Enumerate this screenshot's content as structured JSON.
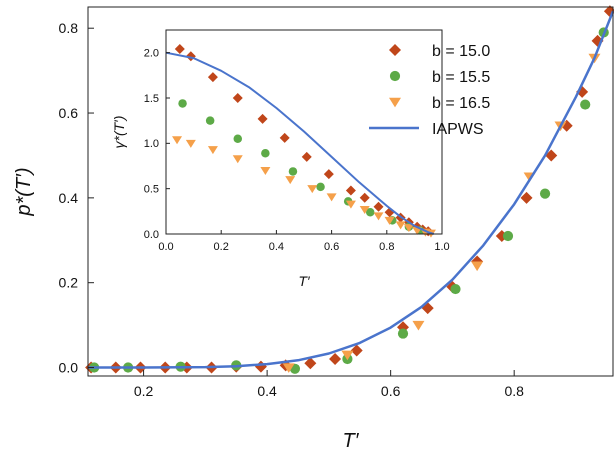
{
  "colors": {
    "b150": "#c0461a",
    "b155": "#5daa47",
    "b165": "#f5a04a",
    "iapws": "#4a74cc",
    "axis": "#222222"
  },
  "chart_data": [
    {
      "id": "main",
      "type": "scatter",
      "xlabel": "T′",
      "ylabel": "p*(T′)",
      "xlim": [
        0.11,
        0.96
      ],
      "ylim": [
        -0.02,
        0.85
      ],
      "xticks": [
        0.2,
        0.4,
        0.6,
        0.8
      ],
      "xtick_labels": [
        "0.2",
        "0.4",
        "0.6",
        "0.8"
      ],
      "yticks": [
        0.0,
        0.2,
        0.4,
        0.6,
        0.8
      ],
      "ytick_labels": [
        "0.0",
        "0.2",
        "0.4",
        "0.6",
        "0.8"
      ],
      "grid": false,
      "series": [
        {
          "name": "b = 15.0",
          "marker": "diamond",
          "color_key": "b150",
          "x": [
            0.115,
            0.155,
            0.195,
            0.235,
            0.27,
            0.31,
            0.35,
            0.39,
            0.43,
            0.47,
            0.51,
            0.545,
            0.62,
            0.66,
            0.7,
            0.74,
            0.78,
            0.82,
            0.86,
            0.885,
            0.91,
            0.935,
            0.955
          ],
          "y": [
            0.0,
            0.0,
            0.0,
            0.0,
            0.0,
            0.0,
            0.002,
            0.002,
            0.005,
            0.01,
            0.02,
            0.04,
            0.095,
            0.14,
            0.19,
            0.25,
            0.31,
            0.4,
            0.5,
            0.57,
            0.65,
            0.77,
            0.84
          ]
        },
        {
          "name": "b = 15.5",
          "marker": "circle",
          "color_key": "b155",
          "x": [
            0.12,
            0.175,
            0.26,
            0.35,
            0.445,
            0.53,
            0.62,
            0.705,
            0.79,
            0.85,
            0.915,
            0.945
          ],
          "y": [
            0.0,
            0.0,
            0.002,
            0.005,
            -0.003,
            0.02,
            0.08,
            0.185,
            0.31,
            0.41,
            0.62,
            0.79
          ]
        },
        {
          "name": "b = 16.5",
          "marker": "triangle-down",
          "color_key": "b165",
          "x": [
            0.435,
            0.53,
            0.645,
            0.74,
            0.825,
            0.875,
            0.93
          ],
          "y": [
            0.0,
            0.03,
            0.1,
            0.24,
            0.45,
            0.57,
            0.73
          ]
        },
        {
          "name": "IAPWS",
          "marker": "line",
          "color_key": "iapws",
          "x": [
            0.11,
            0.2,
            0.3,
            0.35,
            0.4,
            0.45,
            0.5,
            0.55,
            0.6,
            0.65,
            0.7,
            0.75,
            0.8,
            0.85,
            0.9,
            0.93,
            0.96
          ],
          "y": [
            0.0,
            0.0,
            0.001,
            0.003,
            0.008,
            0.017,
            0.033,
            0.058,
            0.094,
            0.143,
            0.207,
            0.288,
            0.385,
            0.5,
            0.638,
            0.73,
            0.84
          ]
        }
      ],
      "legend": {
        "placement": "top-right",
        "entries": [
          "b = 15.0",
          "b = 15.5",
          "b = 16.5",
          "IAPWS"
        ]
      }
    },
    {
      "id": "inset",
      "type": "scatter",
      "xlabel": "T′",
      "ylabel": "γ*(T′)",
      "xlim": [
        0.0,
        1.0
      ],
      "ylim": [
        0.0,
        2.25
      ],
      "xticks": [
        0.0,
        0.2,
        0.4,
        0.6,
        0.8,
        1.0
      ],
      "xtick_labels": [
        "0.0",
        "0.2",
        "0.4",
        "0.6",
        "0.8",
        "1.0"
      ],
      "yticks": [
        0.0,
        0.5,
        1.0,
        1.5,
        2.0
      ],
      "ytick_labels": [
        "0.0",
        "0.5",
        "1.0",
        "1.5",
        "2.0"
      ],
      "grid": false,
      "series": [
        {
          "name": "b = 15.0",
          "marker": "diamond",
          "color_key": "b150",
          "x": [
            0.05,
            0.09,
            0.17,
            0.26,
            0.35,
            0.43,
            0.51,
            0.59,
            0.67,
            0.72,
            0.77,
            0.81,
            0.85,
            0.88,
            0.91,
            0.93,
            0.95
          ],
          "y": [
            2.04,
            1.96,
            1.73,
            1.5,
            1.27,
            1.06,
            0.85,
            0.66,
            0.48,
            0.4,
            0.3,
            0.24,
            0.18,
            0.13,
            0.08,
            0.05,
            0.03
          ]
        },
        {
          "name": "b = 15.5",
          "marker": "circle",
          "color_key": "b155",
          "x": [
            0.06,
            0.16,
            0.26,
            0.36,
            0.46,
            0.56,
            0.66,
            0.74,
            0.82,
            0.88,
            0.92
          ],
          "y": [
            1.44,
            1.25,
            1.05,
            0.89,
            0.69,
            0.52,
            0.36,
            0.24,
            0.15,
            0.08,
            0.04
          ]
        },
        {
          "name": "b = 16.5",
          "marker": "triangle-down",
          "color_key": "b165",
          "x": [
            0.04,
            0.09,
            0.17,
            0.26,
            0.36,
            0.45,
            0.53,
            0.6,
            0.67,
            0.72,
            0.77,
            0.81,
            0.85,
            0.88,
            0.91,
            0.94,
            0.96
          ],
          "y": [
            1.04,
            1.0,
            0.93,
            0.83,
            0.7,
            0.6,
            0.5,
            0.41,
            0.33,
            0.27,
            0.2,
            0.15,
            0.1,
            0.07,
            0.04,
            0.02,
            0.01
          ]
        },
        {
          "name": "IAPWS",
          "marker": "line",
          "color_key": "iapws",
          "x": [
            0.0,
            0.1,
            0.2,
            0.3,
            0.4,
            0.5,
            0.6,
            0.7,
            0.8,
            0.85,
            0.9,
            0.95,
            0.97
          ],
          "y": [
            2.0,
            1.94,
            1.8,
            1.62,
            1.39,
            1.13,
            0.85,
            0.57,
            0.31,
            0.19,
            0.09,
            0.02,
            0.0
          ]
        }
      ]
    }
  ]
}
